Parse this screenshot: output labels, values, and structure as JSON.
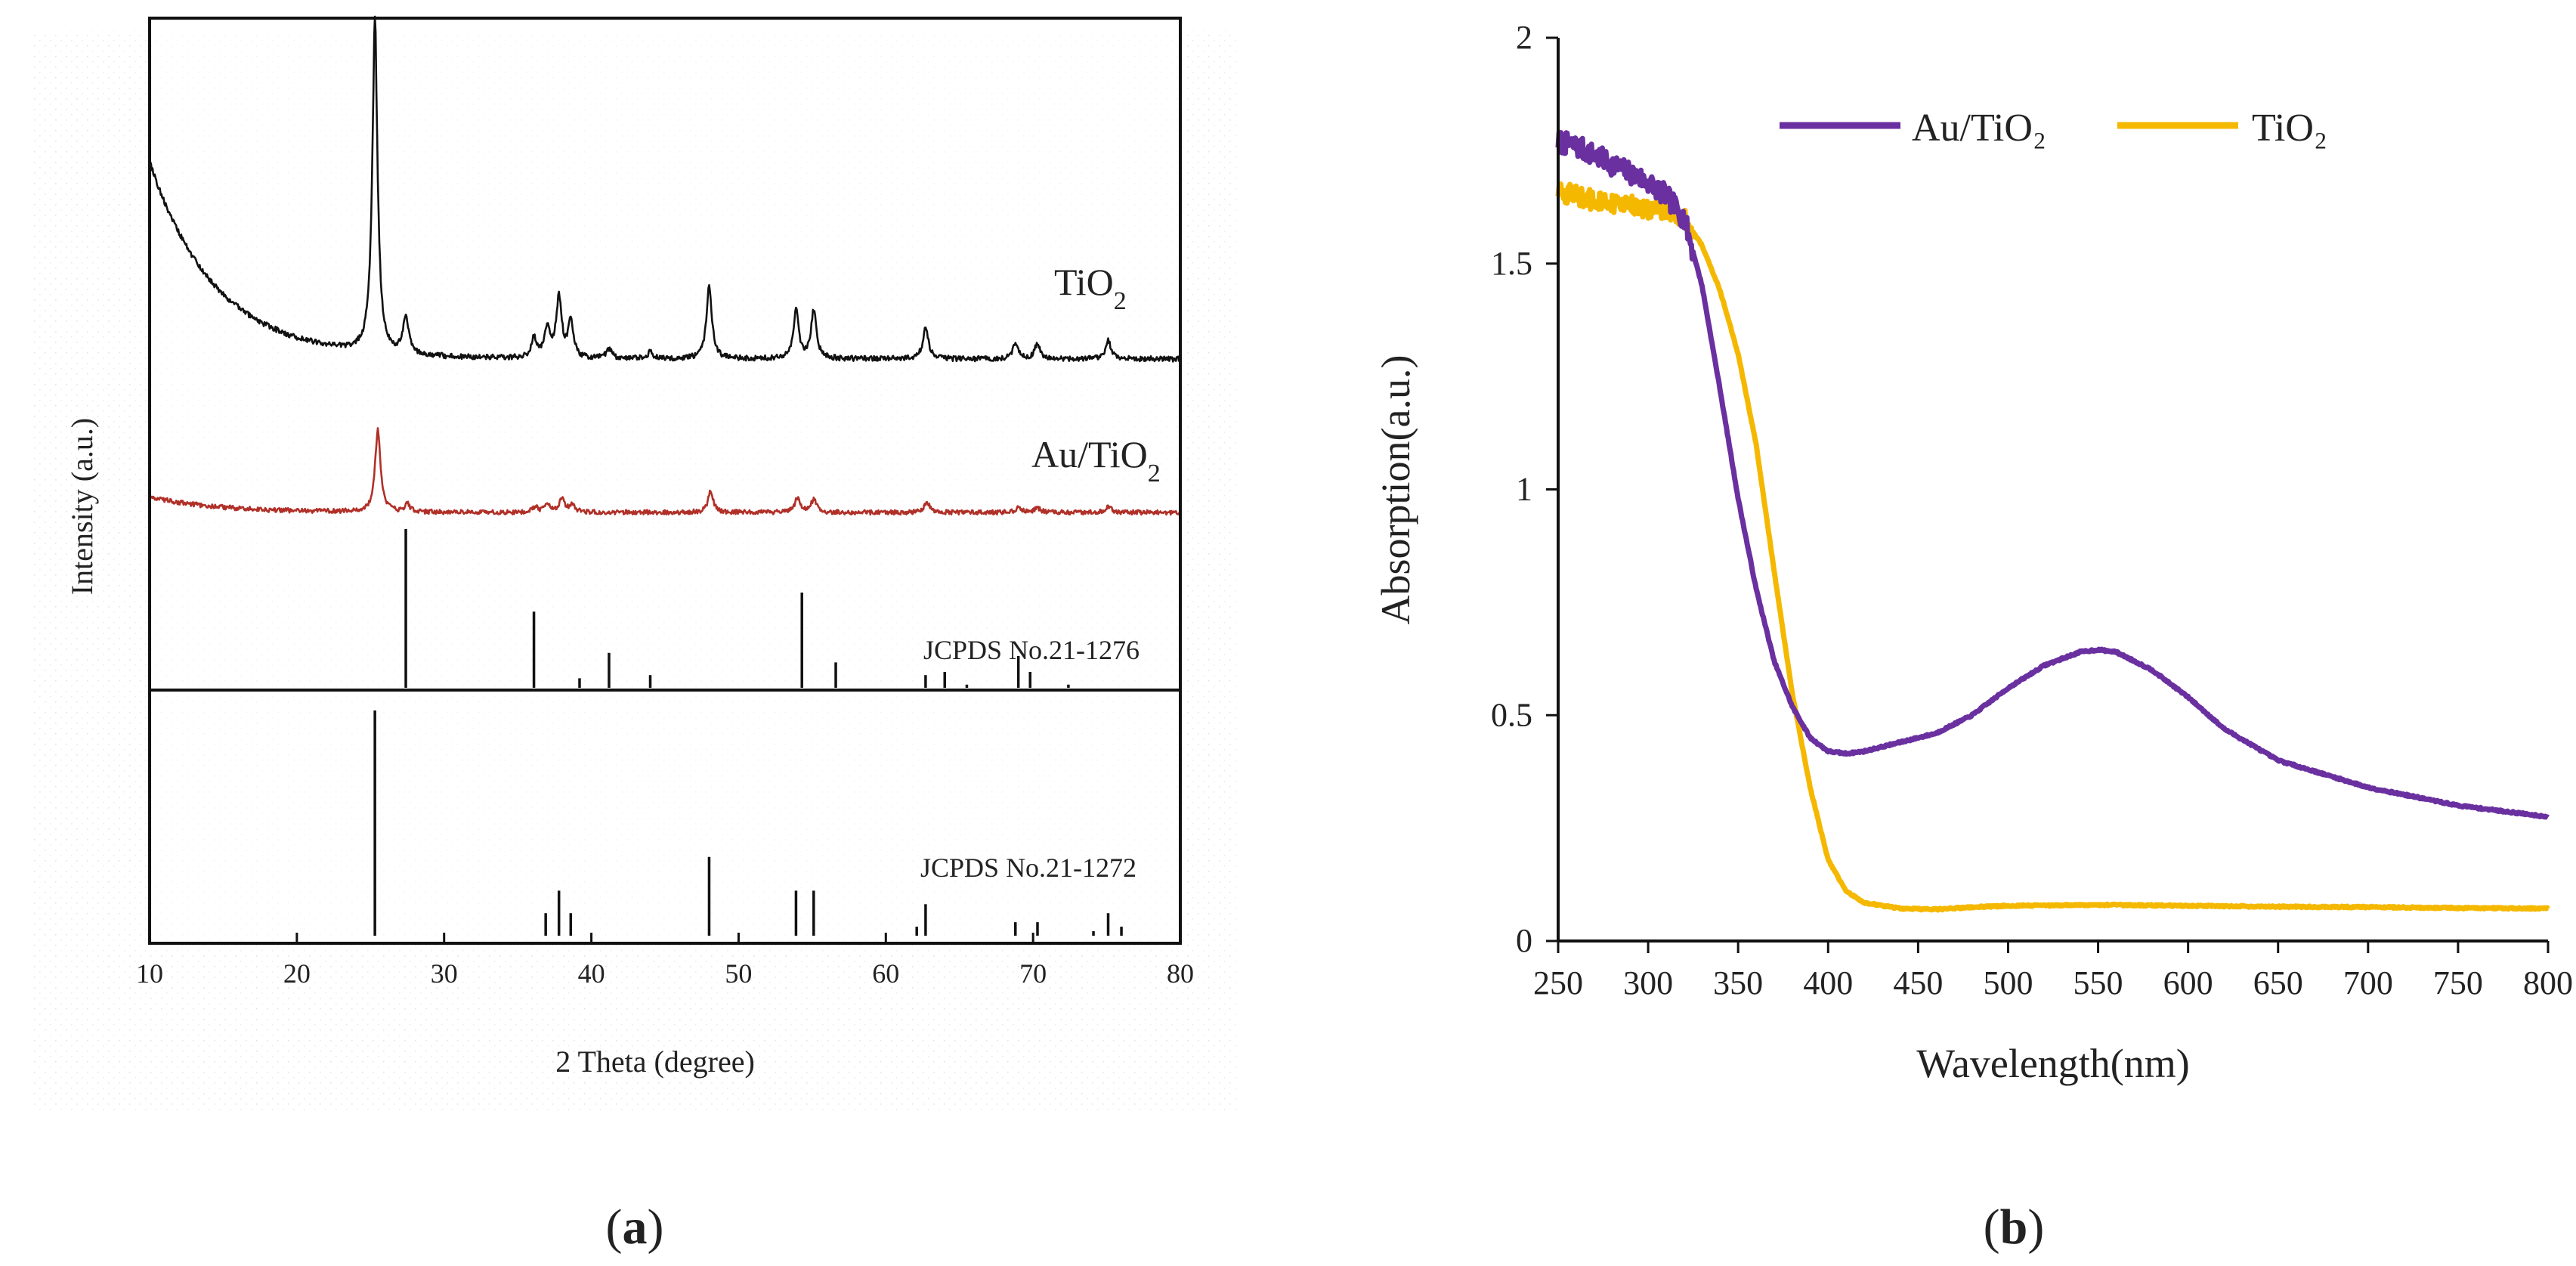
{
  "panels": {
    "a": {
      "label_open": "(",
      "label_letter": "a",
      "label_close": ")"
    },
    "b": {
      "label_open": "(",
      "label_letter": "b",
      "label_close": ")"
    }
  },
  "chart_data": [
    {
      "id": "xrd",
      "type": "line",
      "title": "",
      "xlabel": "2 Theta (degree)",
      "ylabel": "Intensity (a.u.)",
      "xlim": [
        10,
        80
      ],
      "xticks": [
        "10",
        "20",
        "30",
        "40",
        "50",
        "60",
        "70",
        "80"
      ],
      "grid": false,
      "series": [
        {
          "name": "TiO₂",
          "name_main": "TiO",
          "name_sub": "2",
          "color": "#111111",
          "baseline": 0.62,
          "peaks": [
            [
              25.3,
              1.0
            ],
            [
              27.4,
              0.12
            ],
            [
              36.1,
              0.06
            ],
            [
              37.0,
              0.09
            ],
            [
              37.8,
              0.19
            ],
            [
              38.6,
              0.11
            ],
            [
              41.2,
              0.03
            ],
            [
              44.0,
              0.02
            ],
            [
              48.0,
              0.23
            ],
            [
              53.9,
              0.15
            ],
            [
              55.1,
              0.15
            ],
            [
              62.7,
              0.1
            ],
            [
              68.8,
              0.05
            ],
            [
              70.3,
              0.05
            ],
            [
              75.1,
              0.06
            ]
          ]
        },
        {
          "name": "Au/TiO₂",
          "name_main": "Au/TiO",
          "name_sub": "2",
          "color": "#b03028",
          "baseline": 0.1,
          "peaks": [
            [
              25.5,
              0.52
            ],
            [
              27.5,
              0.05
            ],
            [
              36.2,
              0.03
            ],
            [
              37.0,
              0.05
            ],
            [
              38.0,
              0.08
            ],
            [
              38.7,
              0.05
            ],
            [
              48.1,
              0.13
            ],
            [
              54.0,
              0.09
            ],
            [
              55.1,
              0.08
            ],
            [
              62.8,
              0.06
            ],
            [
              69.0,
              0.03
            ],
            [
              70.3,
              0.03
            ],
            [
              75.1,
              0.04
            ]
          ]
        }
      ],
      "references": [
        {
          "name": "JCPDS No.21-1276",
          "lines": [
            [
              27.4,
              1.0
            ],
            [
              36.1,
              0.48
            ],
            [
              39.2,
              0.06
            ],
            [
              41.2,
              0.22
            ],
            [
              44.0,
              0.08
            ],
            [
              54.3,
              0.6
            ],
            [
              56.6,
              0.16
            ],
            [
              62.7,
              0.08
            ],
            [
              64.0,
              0.1
            ],
            [
              65.5,
              0.02
            ],
            [
              69.0,
              0.2
            ],
            [
              69.8,
              0.1
            ],
            [
              72.4,
              0.02
            ]
          ]
        },
        {
          "name": "JCPDS No.21-1272",
          "lines": [
            [
              25.3,
              1.0
            ],
            [
              36.9,
              0.1
            ],
            [
              37.8,
              0.2
            ],
            [
              38.6,
              0.1
            ],
            [
              48.0,
              0.35
            ],
            [
              53.9,
              0.2
            ],
            [
              55.1,
              0.2
            ],
            [
              62.1,
              0.04
            ],
            [
              62.7,
              0.14
            ],
            [
              68.8,
              0.06
            ],
            [
              70.3,
              0.06
            ],
            [
              74.1,
              0.02
            ],
            [
              75.1,
              0.1
            ],
            [
              76.0,
              0.04
            ]
          ]
        }
      ]
    },
    {
      "id": "uvvis",
      "type": "line",
      "title": "",
      "xlabel": "Wavelength(nm)",
      "ylabel": "Absorption(a.u.)",
      "xlim": [
        250,
        800
      ],
      "ylim": [
        0,
        2
      ],
      "xticks": [
        "250",
        "300",
        "350",
        "400",
        "450",
        "500",
        "550",
        "600",
        "650",
        "700",
        "750",
        "800"
      ],
      "yticks": [
        "0",
        "0.5",
        "1",
        "1.5",
        "2"
      ],
      "grid": false,
      "legend": "top-center",
      "series": [
        {
          "name": "Au/TiO₂",
          "color": "#6a30a0",
          "x": [
            250,
            260,
            270,
            280,
            290,
            300,
            310,
            320,
            330,
            340,
            350,
            360,
            370,
            380,
            390,
            400,
            410,
            420,
            440,
            460,
            480,
            500,
            520,
            540,
            550,
            560,
            580,
            600,
            620,
            650,
            700,
            750,
            800
          ],
          "y": [
            1.77,
            1.76,
            1.74,
            1.72,
            1.7,
            1.68,
            1.65,
            1.6,
            1.45,
            1.22,
            0.98,
            0.78,
            0.62,
            0.52,
            0.45,
            0.42,
            0.415,
            0.42,
            0.44,
            0.46,
            0.5,
            0.56,
            0.61,
            0.64,
            0.645,
            0.64,
            0.6,
            0.54,
            0.47,
            0.4,
            0.34,
            0.3,
            0.275
          ],
          "noise": 0.025
        },
        {
          "name": "TiO₂",
          "color": "#f5b800",
          "x": [
            250,
            260,
            270,
            280,
            290,
            300,
            310,
            320,
            330,
            340,
            350,
            360,
            370,
            380,
            390,
            400,
            410,
            420,
            440,
            460,
            480,
            500,
            550,
            600,
            650,
            700,
            750,
            800
          ],
          "y": [
            1.66,
            1.65,
            1.64,
            1.63,
            1.63,
            1.62,
            1.62,
            1.6,
            1.54,
            1.44,
            1.3,
            1.1,
            0.82,
            0.55,
            0.34,
            0.18,
            0.11,
            0.085,
            0.072,
            0.07,
            0.075,
            0.078,
            0.08,
            0.078,
            0.076,
            0.075,
            0.073,
            0.072
          ],
          "noise": 0.022
        }
      ]
    }
  ]
}
